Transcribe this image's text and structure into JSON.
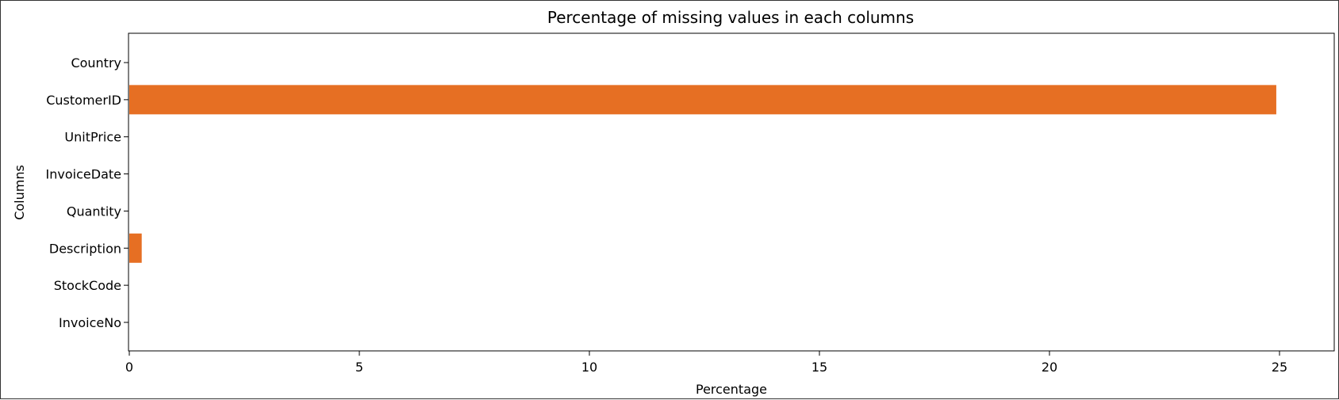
{
  "chart_data": {
    "type": "bar",
    "orientation": "horizontal",
    "title": "Percentage of missing values in each columns",
    "xlabel": "Percentage",
    "ylabel": "Columns",
    "xlim": [
      0,
      26.2
    ],
    "xticks": [
      0,
      5,
      10,
      15,
      20,
      25
    ],
    "categories": [
      "InvoiceNo",
      "StockCode",
      "Description",
      "Quantity",
      "InvoiceDate",
      "UnitPrice",
      "CustomerID",
      "Country"
    ],
    "values": [
      0,
      0,
      0.27,
      0,
      0,
      0,
      24.93,
      0
    ],
    "bar_color": "#e66f23",
    "grid": false,
    "legend": "none"
  }
}
